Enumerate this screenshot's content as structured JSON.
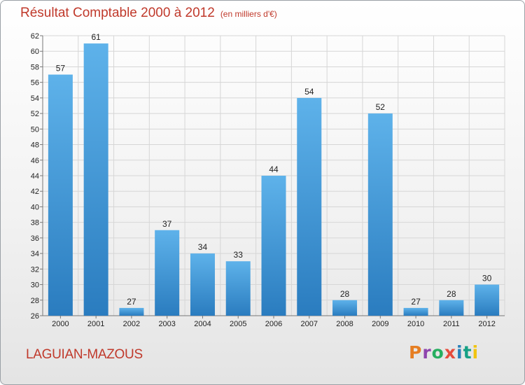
{
  "header": {
    "title": "Résultat Comptable 2000 à 2012",
    "subtitle": "(en milliers d'€)"
  },
  "footer": {
    "commune": "LAGUIAN-MAZOUS",
    "logo_text": "Proxiti"
  },
  "colors": {
    "bar_top": "#5eb2ea",
    "bar_bottom": "#2a7cbf",
    "title": "#c0392b",
    "logo_letters": [
      "#e67e22",
      "#8e44ad",
      "#27ae60",
      "#e74c3c",
      "#2980b9",
      "#16a085",
      "#f1c40f"
    ]
  },
  "chart_data": {
    "type": "bar",
    "categories": [
      "2000",
      "2001",
      "2002",
      "2003",
      "2004",
      "2005",
      "2006",
      "2007",
      "2008",
      "2009",
      "2010",
      "2011",
      "2012"
    ],
    "values": [
      57,
      61,
      27,
      37,
      34,
      33,
      44,
      54,
      28,
      52,
      27,
      28,
      30
    ],
    "ylim": [
      26,
      62
    ],
    "yticks": [
      26,
      28,
      30,
      32,
      34,
      36,
      38,
      40,
      42,
      44,
      46,
      48,
      50,
      52,
      54,
      56,
      58,
      60,
      62
    ],
    "grid": true,
    "legend": "none"
  }
}
